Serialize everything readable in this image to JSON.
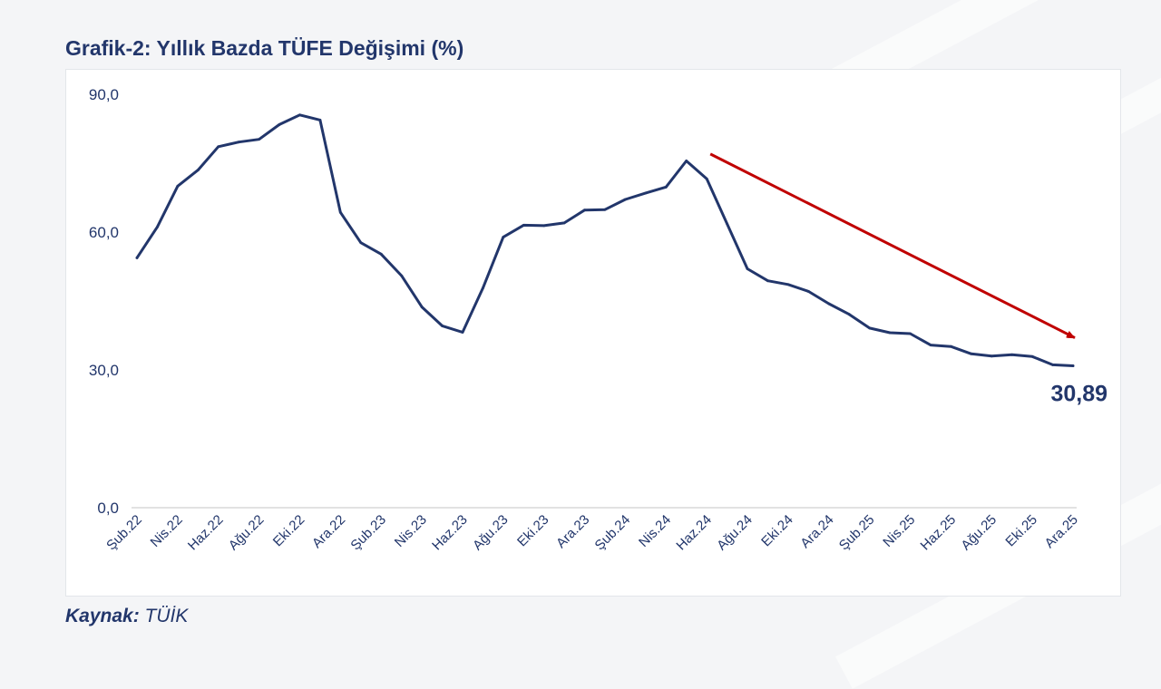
{
  "title": "Grafik-2: Yıllık Bazda TÜFE Değişimi (%)",
  "source": {
    "label": "Kaynak:",
    "value": "TÜİK"
  },
  "chart_data": {
    "type": "line",
    "title": "Grafik-2: Yıllık Bazda TÜFE Değişimi (%)",
    "xlabel": "",
    "ylabel": "",
    "ylim": [
      0,
      90
    ],
    "yticks": [
      0,
      30,
      60,
      90
    ],
    "ytick_labels": [
      "0,0",
      "30,0",
      "60,0",
      "90,0"
    ],
    "grid": false,
    "color": "#22366b",
    "categories": [
      "Şub.22",
      "Mar.22",
      "Nis.22",
      "May.22",
      "Haz.22",
      "Tem.22",
      "Ağu.22",
      "Eyl.22",
      "Eki.22",
      "Kas.22",
      "Ara.22",
      "Oca.23",
      "Şub.23",
      "Mar.23",
      "Nis.23",
      "May.23",
      "Haz.23",
      "Tem.23",
      "Ağu.23",
      "Eyl.23",
      "Eki.23",
      "Kas.23",
      "Ara.23",
      "Oca.24",
      "Şub.24",
      "Mar.24",
      "Nis.24",
      "May.24",
      "Haz.24",
      "Tem.24",
      "Ağu.24",
      "Eyl.24",
      "Eki.24",
      "Kas.24",
      "Ara.24",
      "Oca.25",
      "Şub.25",
      "Mar.25",
      "Nis.25",
      "May.25",
      "Haz.25",
      "Tem.25",
      "Ağu.25",
      "Eyl.25",
      "Eki.25",
      "Kas.25",
      "Ara.25"
    ],
    "shown_tick_labels": [
      "Şub.22",
      "Nis.22",
      "Haz.22",
      "Ağu.22",
      "Eki.22",
      "Ara.22",
      "Şub.23",
      "Nis.23",
      "Haz.23",
      "Ağu.23",
      "Eki.23",
      "Ara.23",
      "Şub.24",
      "Nis.24",
      "Haz.24",
      "Ağu.24",
      "Eki.24",
      "Ara.24",
      "Şub.25",
      "Nis.25",
      "Haz.25",
      "Ağu.25",
      "Eki.25",
      "Ara.25"
    ],
    "values": [
      54.4,
      61.1,
      70.0,
      73.5,
      78.6,
      79.6,
      80.2,
      83.4,
      85.5,
      84.4,
      64.3,
      57.7,
      55.2,
      50.5,
      43.7,
      39.6,
      38.2,
      47.8,
      58.9,
      61.5,
      61.4,
      62.0,
      64.8,
      64.9,
      67.1,
      68.5,
      69.8,
      75.5,
      71.6,
      61.8,
      52.0,
      49.4,
      48.6,
      47.1,
      44.4,
      42.1,
      39.1,
      38.1,
      37.9,
      35.4,
      35.1,
      33.5,
      33.0,
      33.3,
      32.9,
      31.1,
      30.89
    ],
    "annotations": [
      {
        "text": "30,89",
        "target": "last-point"
      },
      {
        "type": "arrow",
        "from": {
          "x": "Haz.24",
          "y": 77
        },
        "to": {
          "x": "Ara.25",
          "y": 37
        },
        "color": "#c00000"
      }
    ]
  }
}
